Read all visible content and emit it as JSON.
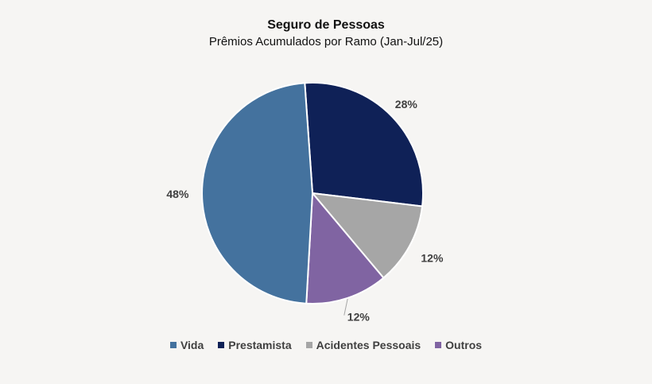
{
  "chart_data": {
    "type": "pie",
    "title": "Seguro de Pessoas",
    "subtitle": "Prêmios Acumulados por Ramo (Jan-Jul/25)",
    "slices": [
      {
        "name": "Prestamista",
        "value": 28,
        "label": "28%",
        "color": "#0f2157"
      },
      {
        "name": "Acidentes Pessoais",
        "value": 12,
        "label": "12%",
        "color": "#a6a6a6"
      },
      {
        "name": "Outros",
        "value": 12,
        "label": "12%",
        "color": "#8064a2"
      },
      {
        "name": "Vida",
        "value": 48,
        "label": "48%",
        "color": "#44729e"
      }
    ],
    "legend": [
      {
        "name": "Vida",
        "color": "#44729e"
      },
      {
        "name": "Prestamista",
        "color": "#0f2157"
      },
      {
        "name": "Acidentes Pessoais",
        "color": "#a6a6a6"
      },
      {
        "name": "Outros",
        "color": "#8064a2"
      }
    ],
    "legend_position": "bottom"
  }
}
